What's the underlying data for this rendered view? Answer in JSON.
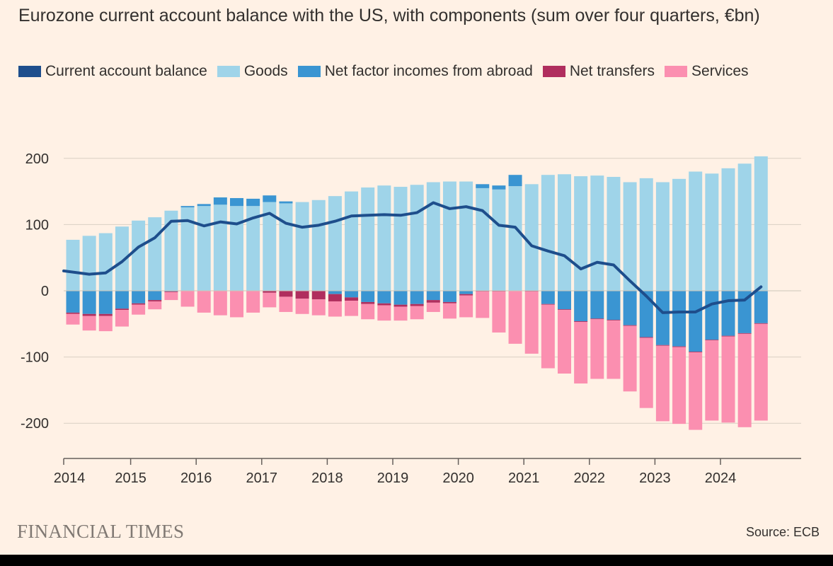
{
  "title": "Eurozone current account balance with the US, with components (sum over four quarters, €bn)",
  "legend": [
    {
      "label": "Current account balance",
      "color": "#1E4E8C",
      "icon": "line"
    },
    {
      "label": "Goods",
      "color": "#9FD4E9",
      "icon": "bar"
    },
    {
      "label": "Net factor incomes from abroad",
      "color": "#3A95D2",
      "icon": "bar"
    },
    {
      "label": "Net transfers",
      "color": "#B02E5E",
      "icon": "bar"
    },
    {
      "label": "Services",
      "color": "#FB8FB0",
      "icon": "bar"
    }
  ],
  "logo": "FINANCIAL TIMES",
  "source": "Source: ECB",
  "chart_data": {
    "type": "bar",
    "stacked": true,
    "x_start": "2014-Q1",
    "frequency": "quarterly",
    "x_tick_labels": [
      "2014",
      "2015",
      "2016",
      "2017",
      "2018",
      "2019",
      "2020",
      "2021",
      "2022",
      "2023",
      "2024"
    ],
    "y_ticks": [
      200,
      100,
      0,
      -100,
      -200
    ],
    "ylim": [
      -250,
      205
    ],
    "grid": true,
    "legend_placement": "top",
    "series": [
      {
        "name": "Goods",
        "color": "#9FD4E9",
        "values": [
          77,
          83,
          87,
          97,
          106,
          111,
          121,
          126,
          128,
          130,
          128,
          128,
          134,
          132,
          134,
          137,
          143,
          150,
          156,
          159,
          157,
          160,
          164,
          165,
          165,
          155,
          153,
          158,
          161,
          175,
          176,
          173,
          174,
          172,
          164,
          170,
          164,
          169,
          180,
          177,
          185,
          192,
          203
        ]
      },
      {
        "name": "Net factor incomes from abroad",
        "color": "#3A95D2",
        "values": [
          -33,
          -35,
          -35,
          -27,
          -19,
          -14,
          -1,
          2,
          3,
          11,
          12,
          11,
          10,
          3,
          0,
          0,
          -5,
          -10,
          -17,
          -19,
          -21,
          -20,
          -14,
          -17,
          -5,
          6,
          6,
          17,
          0,
          -20,
          -28,
          -46,
          -42,
          -44,
          -52,
          -70,
          -82,
          -84,
          -92,
          -74,
          -68,
          -64,
          -49
        ]
      },
      {
        "name": "Net transfers",
        "color": "#B02E5E",
        "values": [
          -2,
          -3,
          -3,
          -2,
          -2,
          -2,
          -1,
          0,
          0,
          0,
          0,
          0,
          -3,
          -9,
          -12,
          -13,
          -11,
          -5,
          -3,
          -3,
          -3,
          -3,
          -4,
          -2,
          -2,
          -1,
          -1,
          0,
          -1,
          -1,
          -1,
          -1,
          -1,
          -1,
          -1,
          -1,
          -1,
          -1,
          -1,
          -1,
          -1,
          -1,
          -1
        ]
      },
      {
        "name": "Services",
        "color": "#FB8FB0",
        "values": [
          -16,
          -22,
          -23,
          -25,
          -15,
          -12,
          -12,
          -24,
          -33,
          -37,
          -40,
          -33,
          -22,
          -23,
          -23,
          -24,
          -23,
          -23,
          -23,
          -23,
          -21,
          -20,
          -14,
          -23,
          -33,
          -40,
          -62,
          -80,
          -94,
          -96,
          -96,
          -93,
          -90,
          -88,
          -99,
          -106,
          -114,
          -116,
          -117,
          -121,
          -130,
          -141,
          -146
        ]
      },
      {
        "name": "Current account balance",
        "color": "#1E4E8C",
        "type": "line",
        "values": [
          30,
          25,
          27,
          44,
          66,
          80,
          105,
          106,
          98,
          104,
          101,
          110,
          117,
          102,
          96,
          99,
          105,
          113,
          114,
          115,
          114,
          118,
          133,
          124,
          127,
          121,
          99,
          96,
          68,
          60,
          53,
          33,
          43,
          39,
          15,
          -8,
          -33,
          -32,
          -32,
          -20,
          -15,
          -14,
          6
        ]
      }
    ]
  }
}
